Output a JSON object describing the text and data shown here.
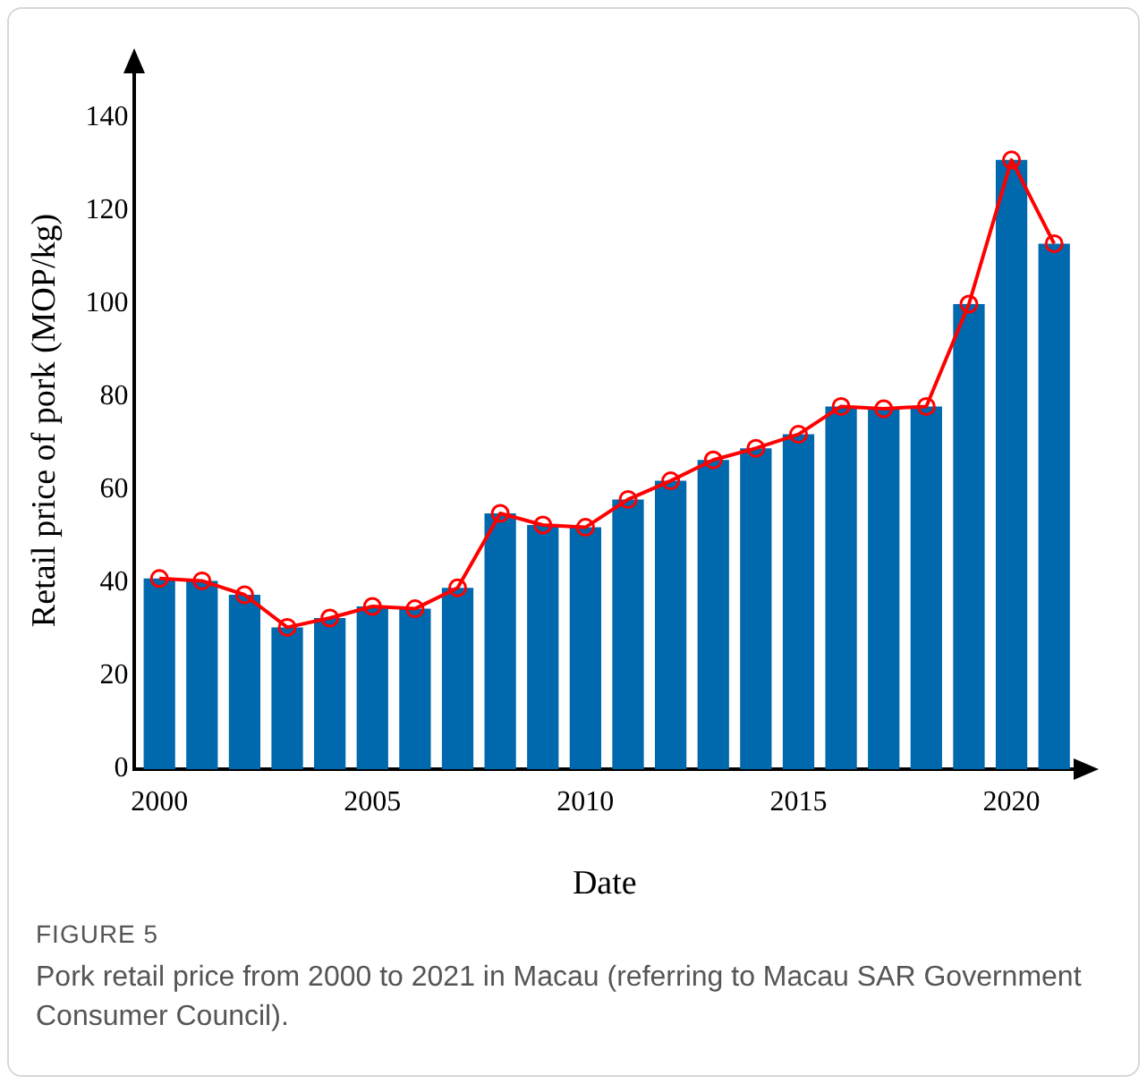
{
  "chart_data": {
    "type": "bar",
    "xlabel": "Date",
    "ylabel": "Retail price of pork (MOP/kg)",
    "x": [
      2000,
      2001,
      2002,
      2003,
      2004,
      2005,
      2006,
      2007,
      2008,
      2009,
      2010,
      2011,
      2012,
      2013,
      2014,
      2015,
      2016,
      2017,
      2018,
      2019,
      2020,
      2021
    ],
    "series": [
      {
        "color": "#0068ad",
        "values": [
          41,
          40.5,
          37.5,
          30.5,
          32.5,
          35,
          34.5,
          39,
          55,
          52.5,
          52,
          58,
          62,
          66.5,
          69,
          72,
          78,
          77.5,
          78,
          100,
          131,
          113
        ]
      },
      {
        "type": "line",
        "color": "#ff0000",
        "marker": "circle",
        "values": [
          41,
          40.5,
          37.5,
          30.5,
          32.5,
          35,
          34.5,
          39,
          55,
          52.5,
          52,
          58,
          62,
          66.5,
          69,
          72,
          78,
          77.5,
          78,
          100,
          131,
          113
        ]
      }
    ],
    "xlim": [
      1999.4,
      2021.5
    ],
    "xticks": [
      2000,
      2005,
      2010,
      2015,
      2020
    ],
    "ylim": [
      0,
      150
    ],
    "yticks": [
      0,
      20,
      40,
      60,
      80,
      100,
      120,
      140
    ],
    "grid": false,
    "legend": false,
    "annotations": [
      "FIGURE 5",
      "Pork retail price from 2000 to 2021 in Macau (referring to Macau SAR Government Consumer Council)."
    ]
  }
}
